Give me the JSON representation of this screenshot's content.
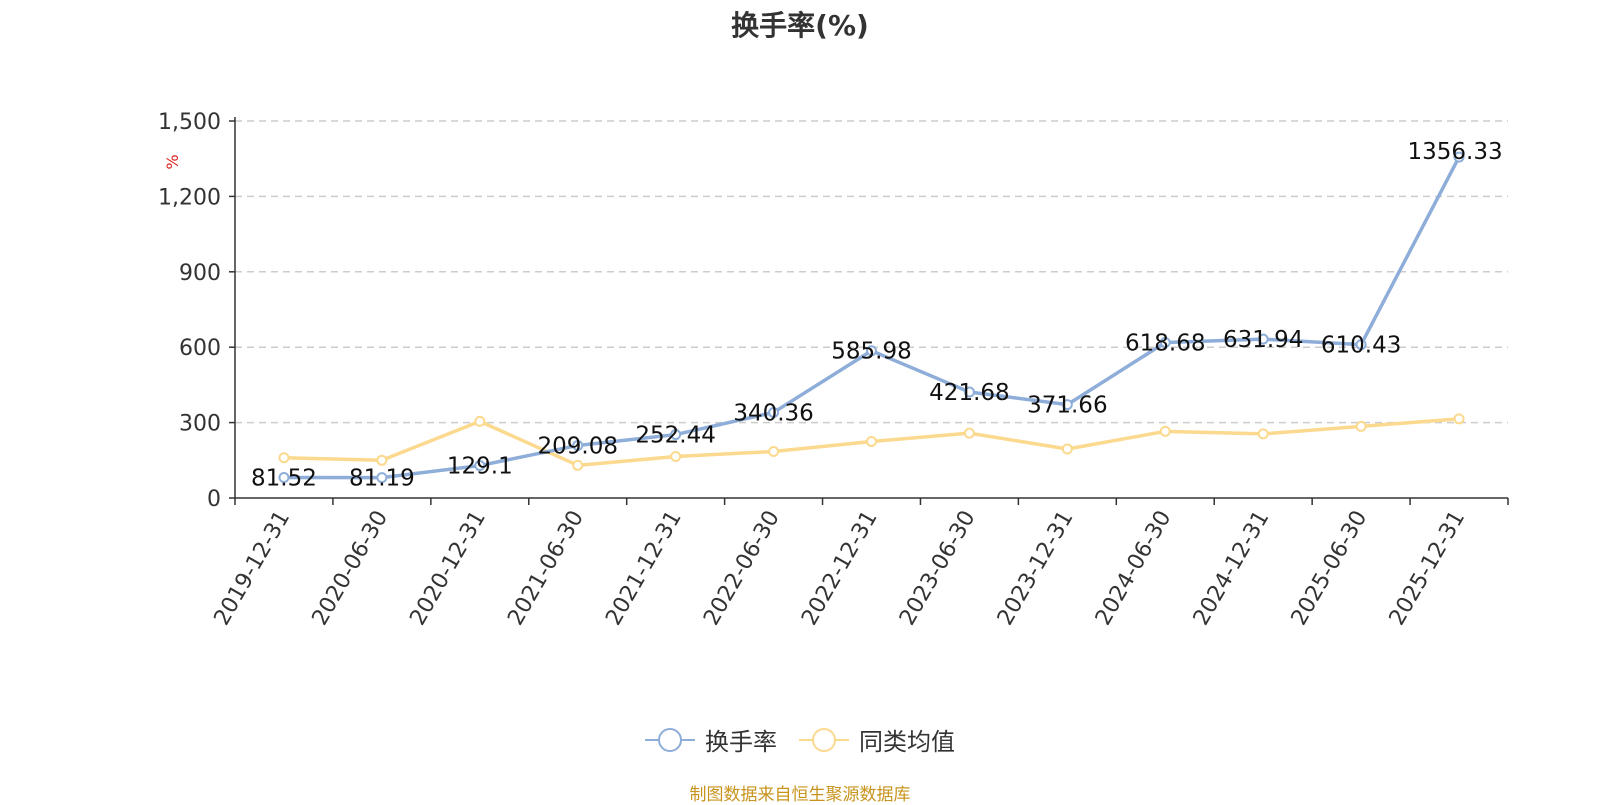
{
  "chart_data": {
    "type": "line",
    "title": "换手率(%)",
    "ylabel": "%",
    "ylim": [
      0,
      1500
    ],
    "yticks": [
      0,
      300,
      600,
      900,
      1200,
      1500
    ],
    "ytick_labels": [
      "0",
      "300",
      "600",
      "900",
      "1,200",
      "1,500"
    ],
    "grid": "horizontal-dashed",
    "legend_position": "bottom-center",
    "categories": [
      "2019-12-31",
      "2020-06-30",
      "2020-12-31",
      "2021-06-30",
      "2021-12-31",
      "2022-06-30",
      "2022-12-31",
      "2023-06-30",
      "2023-12-31",
      "2024-06-30",
      "2024-12-31",
      "2025-06-30",
      "2025-12-31"
    ],
    "series": [
      {
        "name": "换手率",
        "color": "#8eaed9",
        "values": [
          81.52,
          81.19,
          129.1,
          209.08,
          252.44,
          340.36,
          585.98,
          421.68,
          371.66,
          618.68,
          631.94,
          610.43,
          1356.33
        ],
        "data_labels": [
          "81.52",
          "81.19",
          "129.1",
          "209.08",
          "252.44",
          "340.36",
          "585.98",
          "421.68",
          "371.66",
          "618.68",
          "631.94",
          "610.43",
          "1356.33"
        ]
      },
      {
        "name": "同类均值",
        "color": "#fbd98e",
        "values": [
          160,
          150,
          305,
          130,
          165,
          185,
          225,
          258,
          195,
          265,
          255,
          285,
          315
        ]
      }
    ]
  },
  "footer": {
    "source": "制图数据来自恒生聚源数据库"
  }
}
